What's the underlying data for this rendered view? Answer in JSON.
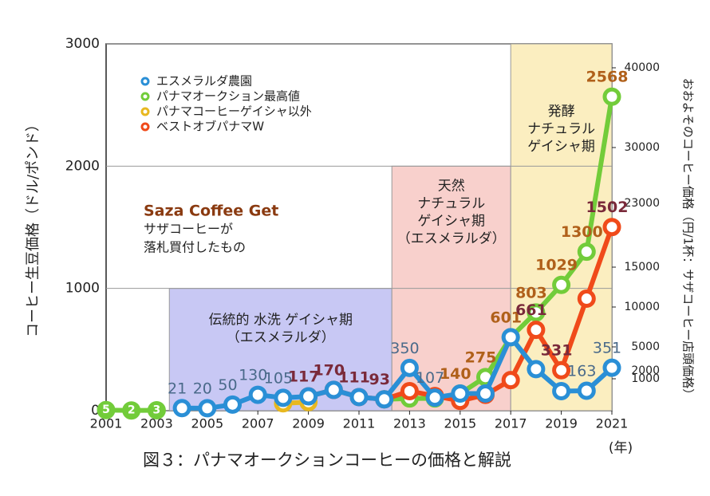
{
  "chart_data": {
    "type": "line",
    "ylabel": "コーヒー生豆価格（ドル/ポンド）",
    "y2label": "おおよそのコーヒー価格（円/1杯：サザコーヒー店頭価格）",
    "xunit": "(年)",
    "caption": "図３：パナマオークションコーヒーの価格と解説",
    "x": [
      2001,
      2002,
      2003,
      2004,
      2005,
      2006,
      2007,
      2008,
      2009,
      2010,
      2011,
      2012,
      2013,
      2014,
      2015,
      2016,
      2017,
      2018,
      2019,
      2020,
      2021
    ],
    "xlim": [
      2001,
      2021
    ],
    "xticks": [
      2001,
      2003,
      2005,
      2007,
      2009,
      2011,
      2013,
      2015,
      2017,
      2019,
      2021
    ],
    "ylim": [
      0,
      3000
    ],
    "yticks": [
      0,
      1000,
      2000,
      3000
    ],
    "y2lim": [
      -3000,
      43000
    ],
    "y2ticks": [
      1000,
      2000,
      5000,
      10000,
      15000,
      23000,
      30000,
      40000
    ],
    "grid": true,
    "legend": "top-left",
    "series": [
      {
        "name": "エスメラルダ農園",
        "color": "#2a8fd6",
        "label_color": "#4a6a8a",
        "values": [
          null,
          null,
          null,
          21,
          20,
          50,
          130,
          105,
          117,
          170,
          111,
          93,
          350,
          107,
          140,
          140,
          601,
          340,
          160,
          163,
          351
        ],
        "value_labels": [
          null,
          null,
          null,
          "21",
          "20",
          "50",
          "130",
          "105",
          null,
          null,
          null,
          null,
          "350",
          "107",
          null,
          null,
          null,
          null,
          null,
          "163",
          "351"
        ]
      },
      {
        "name": "パナマオークション最高値",
        "color": "#72cc3a",
        "label_color": "#b0601a",
        "values": [
          5,
          2,
          3,
          null,
          null,
          null,
          null,
          null,
          null,
          null,
          null,
          93,
          100,
          100,
          140,
          275,
          601,
          803,
          1029,
          1300,
          2568
        ],
        "value_labels": [
          "5",
          "2",
          "3",
          null,
          null,
          null,
          null,
          null,
          null,
          null,
          null,
          null,
          null,
          null,
          "140",
          "275",
          "601",
          "803",
          "1029",
          "1300",
          "2568"
        ]
      },
      {
        "name": "パナマコーヒーゲイシャ以外",
        "color": "#e8b820",
        "label_color": "#b0601a",
        "values": [
          null,
          null,
          null,
          null,
          null,
          null,
          null,
          60,
          70,
          null,
          null,
          null,
          null,
          null,
          null,
          null,
          null,
          null,
          null,
          null,
          null
        ],
        "value_labels": [
          null,
          null,
          null,
          null,
          null,
          null,
          null,
          null,
          null,
          null,
          null,
          null,
          null,
          null,
          null,
          null,
          null,
          null,
          null,
          null,
          null
        ]
      },
      {
        "name": "ベストオブパナマW",
        "color": "#f04a1a",
        "label_color": "#7a2a3a",
        "values": [
          null,
          null,
          null,
          null,
          null,
          null,
          null,
          null,
          117,
          170,
          111,
          93,
          160,
          120,
          80,
          130,
          250,
          661,
          331,
          916,
          1502
        ],
        "value_labels": [
          null,
          null,
          null,
          null,
          null,
          null,
          null,
          null,
          "117",
          "170",
          "111",
          "93",
          null,
          null,
          null,
          null,
          null,
          "661",
          "331",
          null,
          "1502"
        ]
      }
    ],
    "regions": [
      {
        "from": 2003.5,
        "to": 2012.3,
        "top": 1000,
        "color": "#c8c8f4",
        "label": [
          "伝統的 水洗 ゲイシャ期",
          "（エスメラルダ）"
        ]
      },
      {
        "from": 2012.3,
        "to": 2017,
        "top": 2000,
        "color": "#f8d0cc",
        "label": [
          "天然",
          "ナチュラル",
          "ゲイシャ期",
          "（エスメラルダ）"
        ]
      },
      {
        "from": 2017,
        "to": 2021,
        "top": 3000,
        "color": "#fbeec0",
        "label": [
          "発酵",
          "ナチュラル",
          "ゲイシャ期"
        ]
      }
    ],
    "note": {
      "title": "Saza Coffee Get",
      "lines": [
        "サザコーヒーが",
        "落札買付したもの"
      ]
    }
  }
}
